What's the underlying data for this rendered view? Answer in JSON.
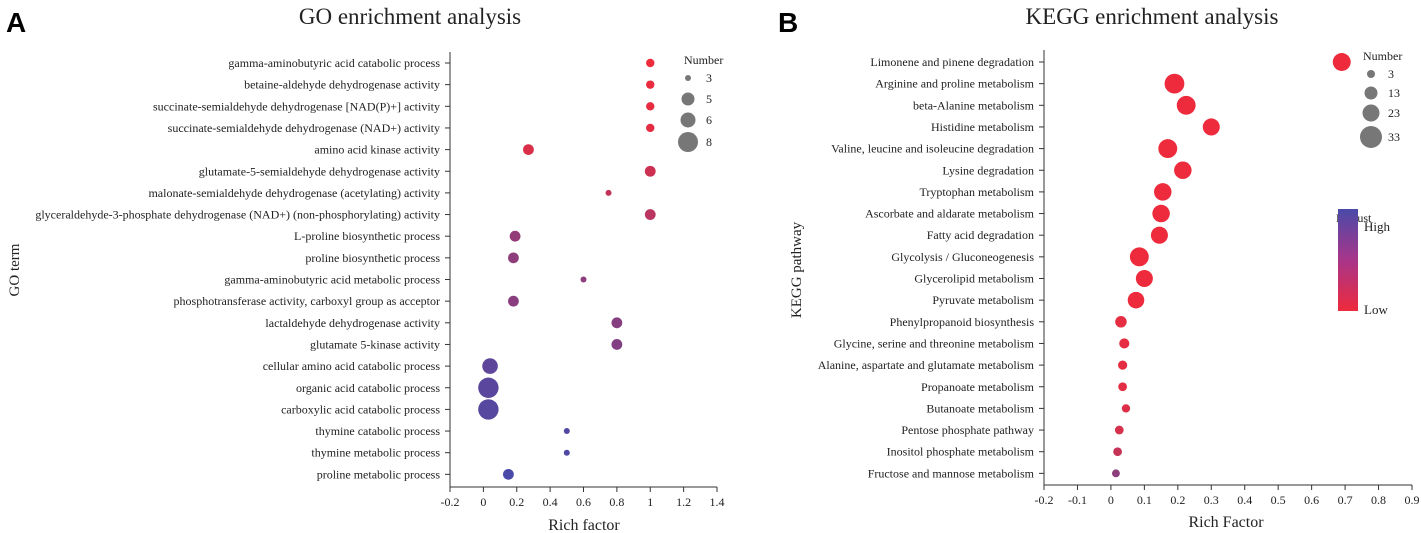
{
  "panels": {
    "a": {
      "letter": "A"
    },
    "b": {
      "letter": "B"
    }
  },
  "chart_data": [
    {
      "type": "scatter",
      "title": "GO enrichment analysis",
      "xlabel": "Rich factor",
      "ylabel": "GO term",
      "xlim": [
        -0.2,
        1.4
      ],
      "xticks": [
        "-0.2",
        "0",
        "0.2",
        "0.4",
        "0.6",
        "0.8",
        "1",
        "1.2",
        "1.4"
      ],
      "size_legend": {
        "title": "Number",
        "entries": [
          "3",
          "5",
          "6",
          "8"
        ]
      },
      "colors": {
        "high": "#4a4aa8",
        "low": "#ee2b3c"
      },
      "terms": [
        "gamma-aminobutyric acid catabolic process",
        "betaine-aldehyde dehydrogenase activity",
        "succinate-semialdehyde dehydrogenase [NAD(P)+] activity",
        "succinate-semialdehyde dehydrogenase (NAD+) activity",
        "amino acid kinase activity",
        "glutamate-5-semialdehyde dehydrogenase activity",
        "malonate-semialdehyde dehydrogenase (acetylating) activity",
        "glyceraldehyde-3-phosphate dehydrogenase (NAD+) (non-phosphorylating) activity",
        "L-proline biosynthetic process",
        "proline biosynthetic process",
        "gamma-aminobutyric acid metabolic process",
        "phosphotransferase activity, carboxyl group as acceptor",
        "lactaldehyde dehydrogenase activity",
        "glutamate 5-kinase activity",
        "cellular amino acid catabolic process",
        "organic acid catabolic process",
        "carboxylic acid catabolic process",
        "thymine catabolic process",
        "thymine metabolic process",
        "proline metabolic process"
      ],
      "rich_factor": [
        1.0,
        1.0,
        1.0,
        1.0,
        0.27,
        1.0,
        0.75,
        1.0,
        0.19,
        0.18,
        0.6,
        0.18,
        0.8,
        0.8,
        0.04,
        0.03,
        0.03,
        0.5,
        0.5,
        0.15
      ],
      "number": [
        3,
        3,
        3,
        3,
        4,
        4,
        2,
        4,
        4,
        4,
        2,
        4,
        4,
        4,
        6,
        8,
        8,
        2,
        2,
        4
      ],
      "padjust_level": [
        0.0,
        0.02,
        0.04,
        0.06,
        0.12,
        0.2,
        0.27,
        0.32,
        0.55,
        0.58,
        0.6,
        0.62,
        0.64,
        0.66,
        0.88,
        0.9,
        0.92,
        0.95,
        0.97,
        1.0
      ]
    },
    {
      "type": "scatter",
      "title": "KEGG enrichment analysis",
      "xlabel": "Rich Factor",
      "ylabel": "KEGG pathway",
      "xlim": [
        -0.2,
        0.9
      ],
      "xticks": [
        "-0.2",
        "-0.1",
        "0",
        "0.1",
        "0.2",
        "0.3",
        "0.4",
        "0.5",
        "0.6",
        "0.7",
        "0.8",
        "0.9"
      ],
      "size_legend": {
        "title": "Number",
        "entries": [
          "3",
          "13",
          "23",
          "33"
        ]
      },
      "color_legend": {
        "title": "Padjust",
        "high_label": "High",
        "low_label": "Low"
      },
      "colors": {
        "high": "#4a4aa8",
        "low": "#ee2b3c"
      },
      "terms": [
        "Limonene and pinene degradation",
        "Arginine and proline metabolism",
        "beta-Alanine metabolism",
        "Histidine metabolism",
        "Valine, leucine and isoleucine degradation",
        "Lysine degradation",
        "Tryptophan metabolism",
        "Ascorbate and aldarate metabolism",
        "Fatty acid degradation",
        "Glycolysis / Gluconeogenesis",
        "Glycerolipid metabolism",
        "Pyruvate metabolism",
        "Phenylpropanoid biosynthesis",
        "Glycine, serine and threonine metabolism",
        "Alanine, aspartate and glutamate metabolism",
        "Propanoate metabolism",
        "Butanoate metabolism",
        "Pentose phosphate pathway",
        "Inositol phosphate metabolism",
        "Fructose and mannose metabolism"
      ],
      "rich_factor": [
        0.69,
        0.19,
        0.225,
        0.3,
        0.17,
        0.215,
        0.155,
        0.15,
        0.145,
        0.085,
        0.1,
        0.075,
        0.03,
        0.04,
        0.035,
        0.035,
        0.045,
        0.025,
        0.02,
        0.015
      ],
      "number": [
        26,
        30,
        28,
        24,
        28,
        25,
        25,
        25,
        24,
        28,
        24,
        23,
        12,
        9,
        7,
        6,
        5,
        6,
        6,
        4
      ],
      "padjust_level": [
        0.0,
        0.0,
        0.0,
        0.0,
        0.0,
        0.0,
        0.0,
        0.0,
        0.0,
        0.0,
        0.0,
        0.0,
        0.05,
        0.05,
        0.06,
        0.07,
        0.1,
        0.15,
        0.25,
        0.6
      ]
    }
  ]
}
